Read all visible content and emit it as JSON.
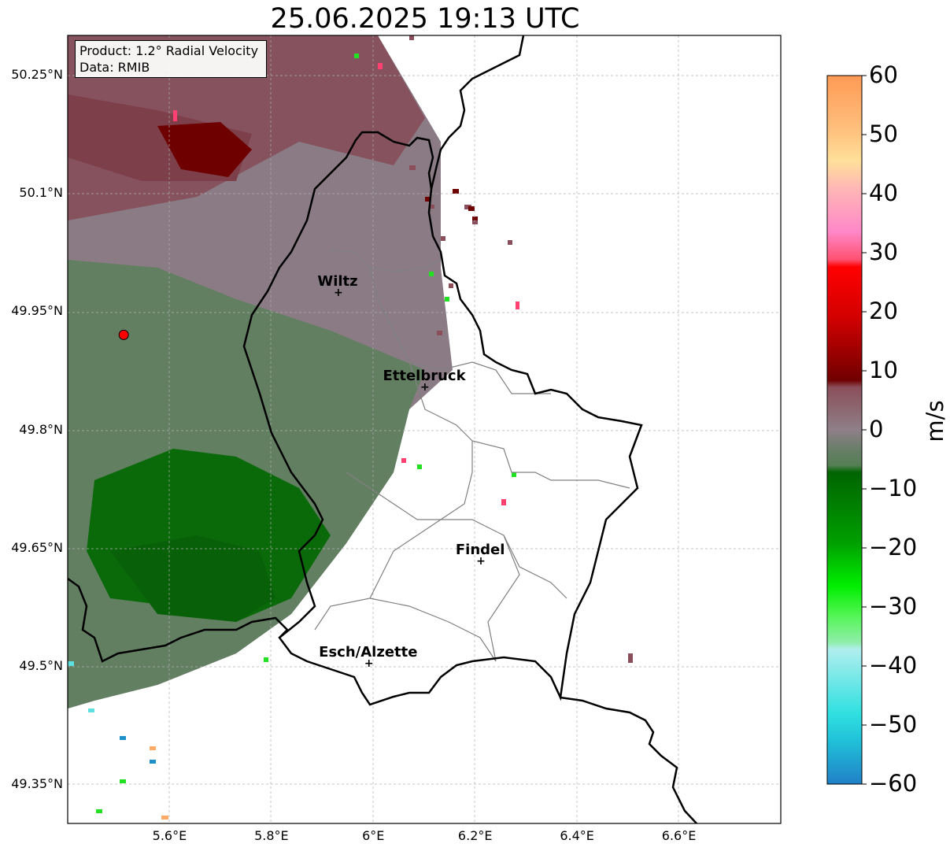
{
  "title": "25.06.2025 19:13 UTC",
  "info_box": {
    "product": "Product: 1.2° Radial Velocity",
    "data": "Data: RMIB"
  },
  "axes": {
    "lon_ticks": [
      "5.6°E",
      "5.8°E",
      "6°E",
      "6.2°E",
      "6.4°E",
      "6.6°E"
    ],
    "lat_ticks": [
      "50.25°N",
      "50.1°N",
      "49.95°N",
      "49.8°N",
      "49.65°N",
      "49.5°N",
      "49.35°N"
    ],
    "grid": true
  },
  "cities": [
    {
      "name": "Wiltz",
      "lon": 5.93,
      "lat": 49.97
    },
    {
      "name": "Ettelbruck",
      "lon": 6.1,
      "lat": 49.85
    },
    {
      "name": "Findel",
      "lon": 6.21,
      "lat": 49.63
    },
    {
      "name": "Esch/Alzette",
      "lon": 5.99,
      "lat": 49.5
    }
  ],
  "radar": {
    "name": "radar-site",
    "lon": 5.51,
    "lat": 49.92,
    "color": "#ff0000"
  },
  "colorbar": {
    "label": "m/s",
    "ticks": [
      "60",
      "50",
      "40",
      "30",
      "20",
      "10",
      "0",
      "−10",
      "−20",
      "−30",
      "−40",
      "−50",
      "−60"
    ],
    "range": [
      -60,
      60
    ]
  },
  "colors": {
    "outbound_dark": "#7a0000",
    "outbound_muted": "#8a4f5a",
    "near_zero": "#8f7f88",
    "inbound_muted": "#5d7f5d",
    "inbound_dark": "#006400",
    "inbound_bright": "#22e022"
  }
}
